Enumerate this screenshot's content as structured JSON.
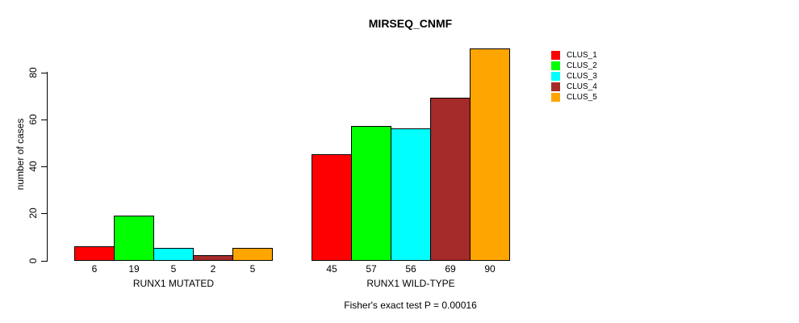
{
  "chart_data": {
    "type": "bar",
    "title": "MIRSEQ_CNMF",
    "ylabel": "number of cases",
    "xlabel": "Fisher's exact test P = 0.00016",
    "categories": [
      "RUNX1 MUTATED",
      "RUNX1 WILD-TYPE"
    ],
    "series": [
      {
        "name": "CLUS_1",
        "color": "#FF0000",
        "values": [
          6,
          45
        ]
      },
      {
        "name": "CLUS_2",
        "color": "#00FF00",
        "values": [
          19,
          57
        ]
      },
      {
        "name": "CLUS_3",
        "color": "#00FFFF",
        "values": [
          5,
          56
        ]
      },
      {
        "name": "CLUS_4",
        "color": "#A52A2A",
        "values": [
          2,
          69
        ]
      },
      {
        "name": "CLUS_5",
        "color": "#FFA500",
        "values": [
          5,
          90
        ]
      }
    ],
    "bar_value_labels": [
      [
        6,
        19,
        5,
        2,
        5
      ],
      [
        45,
        57,
        56,
        69,
        90
      ]
    ],
    "yticks": [
      0,
      20,
      40,
      60,
      80
    ],
    "ylim": [
      0,
      90
    ],
    "grid": false,
    "legend_position": "topright",
    "legend_entries": [
      "CLUS_1",
      "CLUS_2",
      "CLUS_3",
      "CLUS_4",
      "CLUS_5"
    ],
    "axis_color": "#000000",
    "background": "#FFFFFF"
  }
}
